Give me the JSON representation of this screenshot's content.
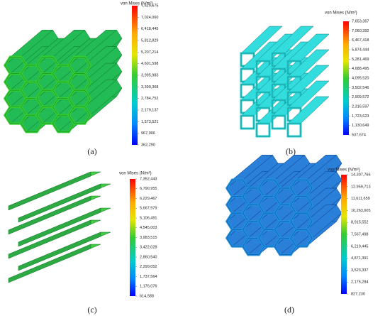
{
  "panels": [
    {
      "label": "(a)",
      "legend_title": "von Mises (N/m²)",
      "ticks": [
        "7,629,675",
        "7,024,060",
        "6,418,445",
        "5,812,829",
        "5,207,214",
        "4,601,598",
        "3,995,983",
        "3,390,368",
        "2,784,752",
        "2,179,137",
        "1,573,521",
        "967,906",
        "362,290"
      ]
    },
    {
      "label": "(b)",
      "legend_title": "von Mises (N/m²)",
      "ticks": [
        "7,653,367",
        "7,060,392",
        "6,467,418",
        "5,874,444",
        "5,281,469",
        "4,688,495",
        "4,095,520",
        "3,502,546",
        "2,909,572",
        "2,316,597",
        "1,723,623",
        "1,130,649",
        "537,674"
      ]
    },
    {
      "label": "(c)",
      "legend_title": "von Mises (N/m²)",
      "ticks": [
        "7,352,443",
        "6,790,955",
        "6,229,467",
        "5,667,979",
        "5,106,491",
        "4,545,003",
        "3,983,515",
        "3,422,028",
        "2,860,540",
        "2,299,052",
        "1,737,564",
        "1,176,076",
        "614,588"
      ]
    },
    {
      "label": "(d)",
      "legend_title": "von Mises (N/m²)",
      "ticks": [
        "14,307,766",
        "12,959,713",
        "11,611,659",
        "10,263,605",
        "8,915,552",
        "7,567,498",
        "6,219,445",
        "4,871,391",
        "3,523,337",
        "2,175,284",
        "827,230"
      ]
    }
  ]
}
